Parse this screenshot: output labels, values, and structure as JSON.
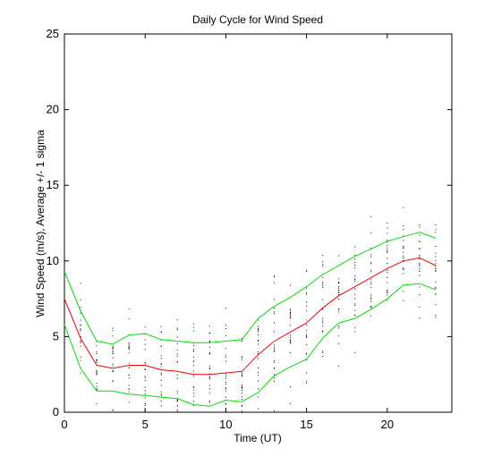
{
  "chart_data": {
    "type": "line",
    "title": "Daily Cycle for Wind Speed",
    "xlabel": "Time (UT)",
    "ylabel": "Wind Speed (m/s), Average +/- 1 sigma",
    "xlim": [
      0,
      24
    ],
    "ylim": [
      0,
      25
    ],
    "x_ticks": [
      0,
      5,
      10,
      15,
      20
    ],
    "y_ticks": [
      0,
      5,
      10,
      15,
      20,
      25
    ],
    "grid": false,
    "x": [
      0,
      1,
      2,
      3,
      4,
      5,
      6,
      7,
      8,
      9,
      10,
      11,
      12,
      13,
      14,
      15,
      16,
      17,
      18,
      19,
      20,
      21,
      22,
      23
    ],
    "series": [
      {
        "role": "mean_plus_sigma",
        "color": "#00dd00",
        "values": [
          9.3,
          6.7,
          4.7,
          4.5,
          5.1,
          5.2,
          4.8,
          4.7,
          4.6,
          4.6,
          4.7,
          4.8,
          6.2,
          7.0,
          7.6,
          8.3,
          9.1,
          9.7,
          10.3,
          10.8,
          11.3,
          11.6,
          11.9,
          11.5
        ]
      },
      {
        "role": "mean",
        "color": "#ee0000",
        "values": [
          7.5,
          4.9,
          3.1,
          2.9,
          3.1,
          3.1,
          2.8,
          2.7,
          2.5,
          2.5,
          2.6,
          2.7,
          3.8,
          4.7,
          5.3,
          5.9,
          6.9,
          7.7,
          8.3,
          8.9,
          9.5,
          10.0,
          10.2,
          9.7
        ]
      },
      {
        "role": "mean_minus_sigma",
        "color": "#00dd00",
        "values": [
          5.8,
          2.9,
          1.4,
          1.4,
          1.2,
          1.1,
          1.0,
          0.9,
          0.5,
          0.4,
          0.8,
          0.7,
          1.3,
          2.4,
          3.0,
          3.5,
          4.9,
          5.9,
          6.2,
          6.8,
          7.5,
          8.4,
          8.5,
          8.1
        ]
      }
    ],
    "point_color": "#000000",
    "points_per_hour": 22
  }
}
